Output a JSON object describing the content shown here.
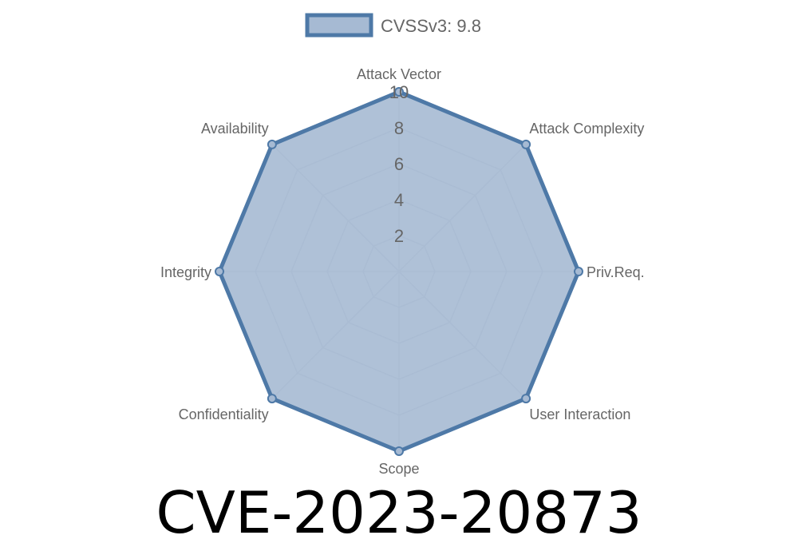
{
  "chart_data": {
    "type": "radar",
    "title": "CVE-2023-20873",
    "axes": [
      "Attack Vector",
      "Attack Complexity",
      "Priv.Req.",
      "User Interaction",
      "Scope",
      "Confidentiality",
      "Integrity",
      "Availability"
    ],
    "series": [
      {
        "name": "CVSSv3: 9.8",
        "values": [
          10,
          10,
          10,
          10,
          10,
          10,
          10,
          10
        ]
      }
    ],
    "rlim": [
      0,
      10
    ],
    "ticks": [
      2,
      4,
      6,
      8,
      10
    ],
    "tick_labels": [
      "2",
      "4",
      "6",
      "8",
      "10"
    ],
    "grid": true,
    "legend_position": "top",
    "colors": {
      "stroke": "#4e79a7",
      "fill": "#a6bad3",
      "grid": "#c8ccd2"
    }
  }
}
